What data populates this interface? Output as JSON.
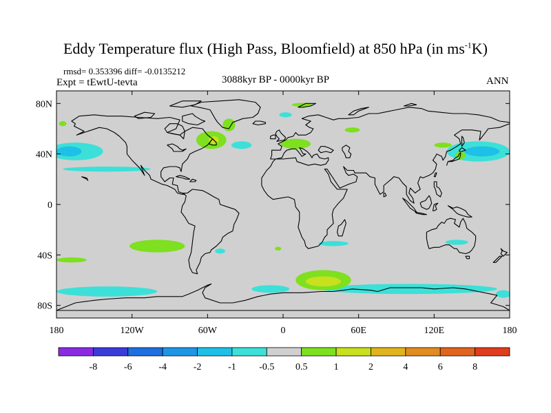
{
  "title": {
    "main": "Eddy Temperature flux (High Pass, Bloomfield) at 850 hPa (in ms",
    "unit_exponent": "-1",
    "unit_suffix": "K)"
  },
  "stats": "rmsd= 0.353396 diff= -0.0135212",
  "experiment": "Expt = tEwtU-tevta",
  "period": "3088kyr BP - 0000kyr BP",
  "season": "ANN",
  "map": {
    "lon_range": [
      -180,
      180
    ],
    "lat_range": [
      -90,
      90
    ],
    "lat_ticks": [
      {
        "lat": 80,
        "label": "80N"
      },
      {
        "lat": 40,
        "label": "40N"
      },
      {
        "lat": 0,
        "label": "0"
      },
      {
        "lat": -40,
        "label": "40S"
      },
      {
        "lat": -80,
        "label": "80S"
      }
    ],
    "lon_ticks": [
      {
        "lon": -180,
        "label": "180"
      },
      {
        "lon": -120,
        "label": "120W"
      },
      {
        "lon": -60,
        "label": "60W"
      },
      {
        "lon": 0,
        "label": "0"
      },
      {
        "lon": 60,
        "label": "60E"
      },
      {
        "lon": 120,
        "label": "120E"
      },
      {
        "lon": 180,
        "label": "180"
      }
    ],
    "background_color": "#d0d0d0",
    "coastline_color": "#000000"
  },
  "colorbar": {
    "colors": [
      "#8a2be2",
      "#3b3bd9",
      "#1e6fe0",
      "#1e96e6",
      "#1ec0e8",
      "#3ce0d8",
      "#d0d0d0",
      "#7ee01e",
      "#c8e01e",
      "#e0b41e",
      "#e08c1e",
      "#e0641e",
      "#e03c1e"
    ],
    "labels": [
      "-8",
      "-6",
      "-4",
      "-2",
      "-1",
      "-0.5",
      "0.5",
      "1",
      "2",
      "4",
      "6",
      "8"
    ]
  },
  "field_patches": [
    {
      "name": "north-pacific-west",
      "lon": -165,
      "lat": 42,
      "rx": 22,
      "ry": 7,
      "color": "#3ce0d8"
    },
    {
      "name": "north-pacific-west-core",
      "lon": -170,
      "lat": 42,
      "rx": 10,
      "ry": 4,
      "color": "#1ec0e8"
    },
    {
      "name": "north-pacific-east",
      "lon": 155,
      "lat": 42,
      "rx": 25,
      "ry": 8,
      "color": "#3ce0d8"
    },
    {
      "name": "north-pacific-east-core",
      "lon": 158,
      "lat": 42,
      "rx": 14,
      "ry": 4,
      "color": "#1ec0e8"
    },
    {
      "name": "north-pacific-band-west",
      "lon": -140,
      "lat": 28,
      "rx": 35,
      "ry": 2,
      "color": "#3ce0d8"
    },
    {
      "name": "japan-positive",
      "lon": 141,
      "lat": 39,
      "rx": 4,
      "ry": 3,
      "color": "#7ee01e"
    },
    {
      "name": "asia-positive",
      "lon": 127,
      "lat": 47,
      "rx": 7,
      "ry": 2,
      "color": "#7ee01e"
    },
    {
      "name": "alaska-positive",
      "lon": -175,
      "lat": 64,
      "rx": 3,
      "ry": 2,
      "color": "#7ee01e"
    },
    {
      "name": "labrador-positive",
      "lon": -57,
      "lat": 51,
      "rx": 12,
      "ry": 7,
      "color": "#7ee01e"
    },
    {
      "name": "labrador-core",
      "lon": -55,
      "lat": 51,
      "rx": 4,
      "ry": 3,
      "color": "#c8e01e"
    },
    {
      "name": "greenland-positive",
      "lon": -43,
      "lat": 63,
      "rx": 5,
      "ry": 5,
      "color": "#7ee01e"
    },
    {
      "name": "north-atlantic-east",
      "lon": -33,
      "lat": 47,
      "rx": 8,
      "ry": 3,
      "color": "#3ce0d8"
    },
    {
      "name": "europe-positive",
      "lon": 10,
      "lat": 48,
      "rx": 12,
      "ry": 4,
      "color": "#7ee01e"
    },
    {
      "name": "arctic-positive",
      "lon": 15,
      "lat": 79,
      "rx": 8,
      "ry": 1.5,
      "color": "#7ee01e"
    },
    {
      "name": "barents-negative",
      "lon": 2,
      "lat": 71,
      "rx": 5,
      "ry": 2,
      "color": "#3ce0d8"
    },
    {
      "name": "asia-north-positive",
      "lon": 55,
      "lat": 59,
      "rx": 6,
      "ry": 2,
      "color": "#7ee01e"
    },
    {
      "name": "south-pacific-positive",
      "lon": -100,
      "lat": -33,
      "rx": 22,
      "ry": 5,
      "color": "#7ee01e"
    },
    {
      "name": "south-pacific-west-positive",
      "lon": -168,
      "lat": -44,
      "rx": 12,
      "ry": 2,
      "color": "#7ee01e"
    },
    {
      "name": "south-america-negative",
      "lon": -50,
      "lat": -37,
      "rx": 4,
      "ry": 2,
      "color": "#3ce0d8"
    },
    {
      "name": "atlantic-south-positive",
      "lon": -4,
      "lat": -35,
      "rx": 2.5,
      "ry": 1.5,
      "color": "#7ee01e"
    },
    {
      "name": "africa-south-negative",
      "lon": 40,
      "lat": -31,
      "rx": 12,
      "ry": 2,
      "color": "#3ce0d8"
    },
    {
      "name": "australia-south-negative",
      "lon": 138,
      "lat": -30,
      "rx": 9,
      "ry": 2,
      "color": "#3ce0d8"
    },
    {
      "name": "southern-ocean-band-west",
      "lon": -140,
      "lat": -69,
      "rx": 40,
      "ry": 4,
      "color": "#3ce0d8"
    },
    {
      "name": "southern-ocean-band-mid",
      "lon": -10,
      "lat": -67,
      "rx": 15,
      "ry": 3,
      "color": "#3ce0d8"
    },
    {
      "name": "southern-ocean-band-east",
      "lon": 100,
      "lat": -67,
      "rx": 70,
      "ry": 4,
      "color": "#3ce0d8"
    },
    {
      "name": "southern-ocean-positive",
      "lon": 32,
      "lat": -60,
      "rx": 22,
      "ry": 8,
      "color": "#7ee01e"
    },
    {
      "name": "southern-ocean-core",
      "lon": 32,
      "lat": -61,
      "rx": 14,
      "ry": 4,
      "color": "#c8e01e"
    },
    {
      "name": "ross-sea-negative",
      "lon": 175,
      "lat": -71,
      "rx": 6,
      "ry": 3,
      "color": "#3ce0d8"
    }
  ]
}
